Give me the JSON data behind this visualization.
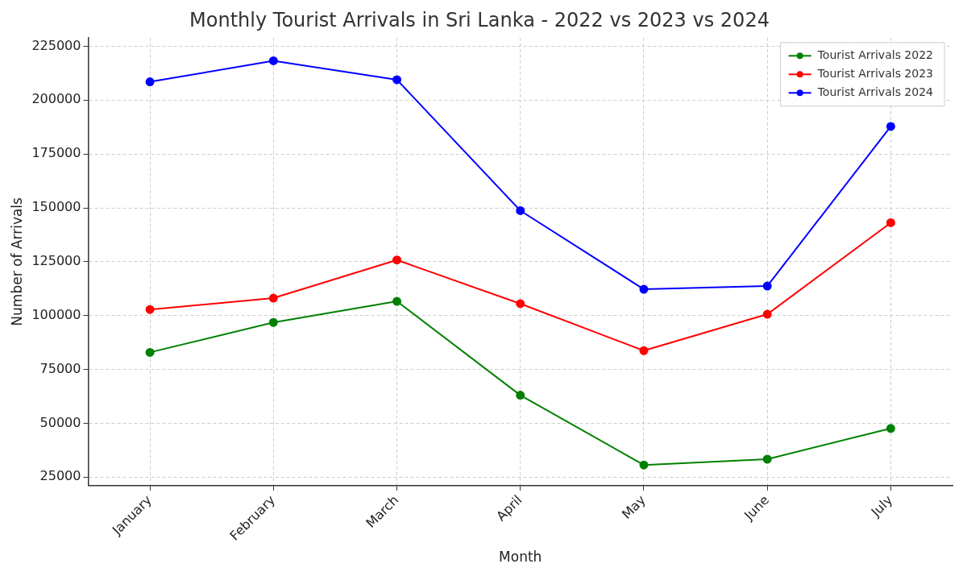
{
  "chart_data": {
    "type": "line",
    "title": "Monthly Tourist Arrivals in Sri Lanka - 2022 vs 2023 vs 2024",
    "xlabel": "Month",
    "ylabel": "Number of Arrivals",
    "categories": [
      "January",
      "February",
      "March",
      "April",
      "May",
      "June",
      "July"
    ],
    "series": [
      {
        "name": "Tourist Arrivals 2022",
        "color": "#008000",
        "values": [
          82900,
          96800,
          106600,
          63000,
          30600,
          33300,
          47600
        ]
      },
      {
        "name": "Tourist Arrivals 2023",
        "color": "#ff0000",
        "values": [
          102800,
          108100,
          125800,
          105500,
          83700,
          100600,
          143100
        ]
      },
      {
        "name": "Tourist Arrivals 2024",
        "color": "#0000ff",
        "values": [
          208500,
          218300,
          209500,
          148700,
          112200,
          113700,
          187800
        ]
      }
    ],
    "ylim": [
      21000,
      229000
    ],
    "yticks": [
      25000,
      50000,
      75000,
      100000,
      125000,
      150000,
      175000,
      200000,
      225000
    ],
    "grid": true,
    "legend": "top right",
    "marker": "circle",
    "line_style": "solid"
  }
}
